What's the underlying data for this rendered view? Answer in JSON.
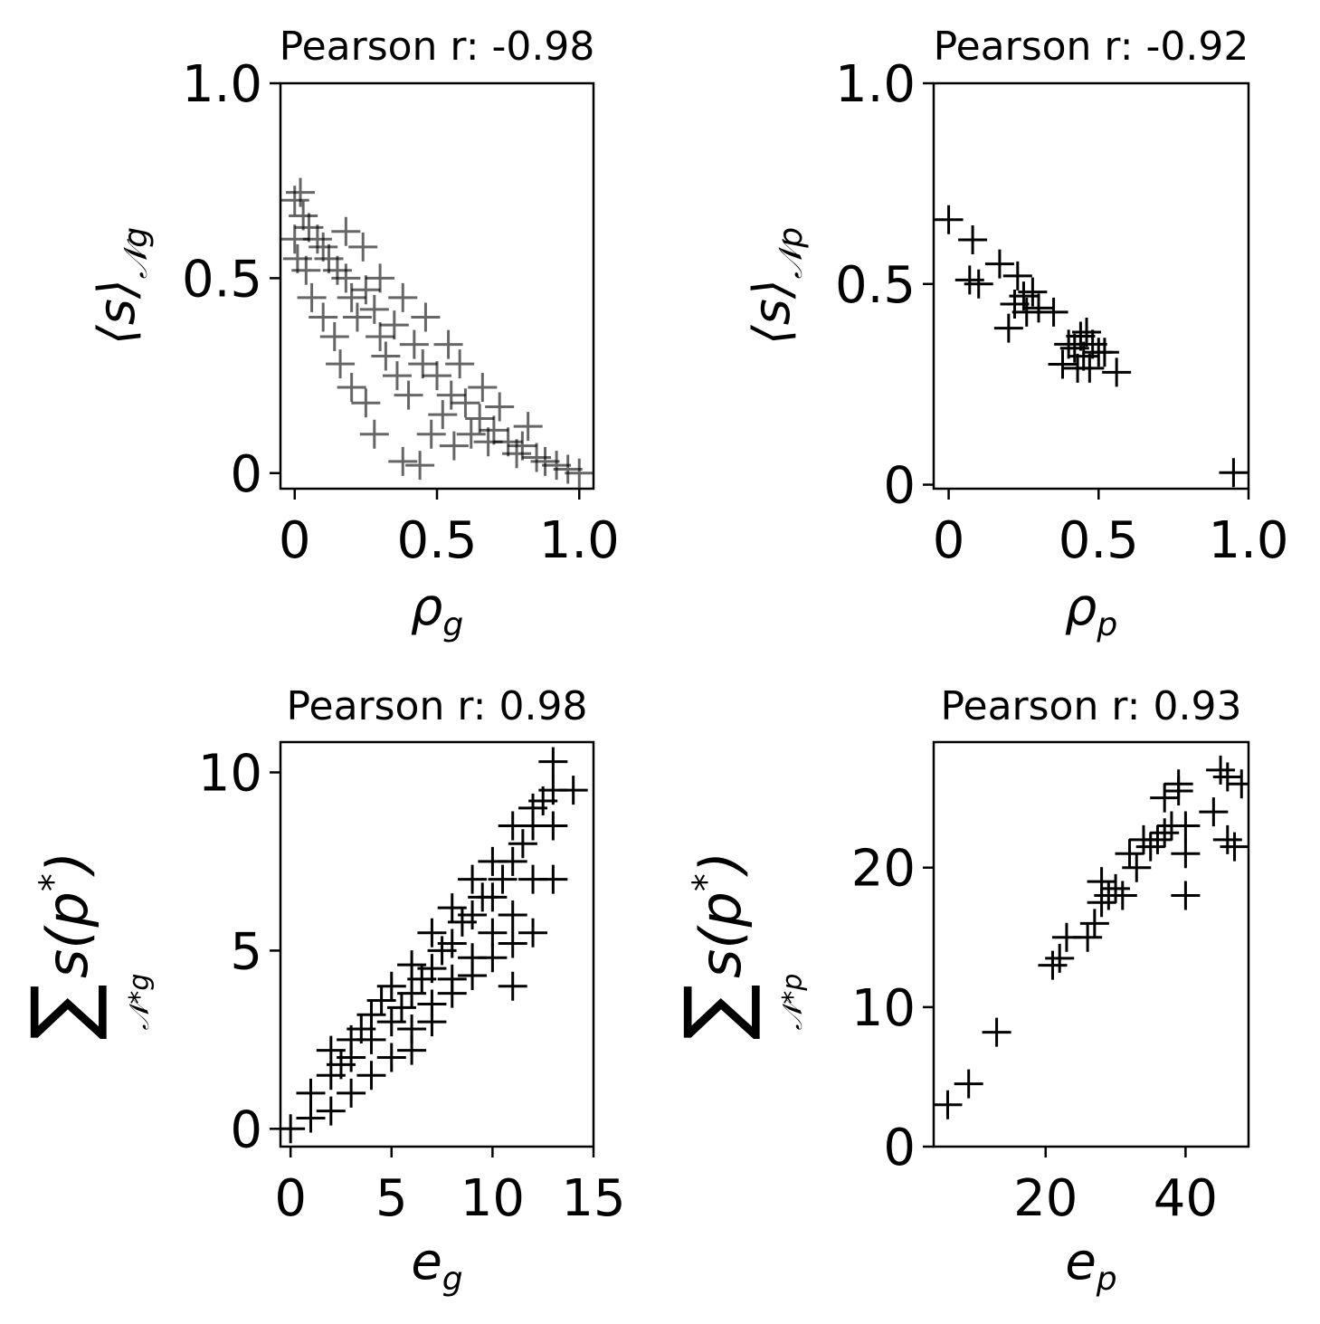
{
  "chart_data": [
    {
      "type": "scatter",
      "title": "Pearson r: -0.98",
      "xlabel": "ρ_g",
      "ylabel": "⟨s⟩_𝒩g",
      "xlim": [
        -0.05,
        1.05
      ],
      "ylim": [
        -0.04,
        1.0
      ],
      "xticks": [
        0,
        0.5,
        1.0
      ],
      "xtick_labels": [
        "0",
        "0.5",
        "1.0"
      ],
      "yticks": [
        0,
        0.5,
        1.0
      ],
      "ytick_labels": [
        "0",
        "0.5",
        "1.0"
      ],
      "marker": "+",
      "grid": false,
      "points": [
        [
          0.0,
          0.7
        ],
        [
          0.02,
          0.72
        ],
        [
          0.0,
          0.6
        ],
        [
          0.01,
          0.55
        ],
        [
          0.03,
          0.66
        ],
        [
          0.05,
          0.63
        ],
        [
          0.04,
          0.52
        ],
        [
          0.08,
          0.6
        ],
        [
          0.1,
          0.58
        ],
        [
          0.06,
          0.45
        ],
        [
          0.12,
          0.55
        ],
        [
          0.15,
          0.52
        ],
        [
          0.1,
          0.4
        ],
        [
          0.14,
          0.35
        ],
        [
          0.18,
          0.5
        ],
        [
          0.2,
          0.45
        ],
        [
          0.22,
          0.4
        ],
        [
          0.16,
          0.28
        ],
        [
          0.2,
          0.22
        ],
        [
          0.25,
          0.47
        ],
        [
          0.28,
          0.42
        ],
        [
          0.3,
          0.35
        ],
        [
          0.25,
          0.18
        ],
        [
          0.28,
          0.1
        ],
        [
          0.32,
          0.3
        ],
        [
          0.35,
          0.38
        ],
        [
          0.36,
          0.25
        ],
        [
          0.38,
          0.03
        ],
        [
          0.4,
          0.2
        ],
        [
          0.42,
          0.33
        ],
        [
          0.44,
          0.02
        ],
        [
          0.45,
          0.28
        ],
        [
          0.48,
          0.1
        ],
        [
          0.5,
          0.25
        ],
        [
          0.52,
          0.15
        ],
        [
          0.55,
          0.2
        ],
        [
          0.56,
          0.07
        ],
        [
          0.6,
          0.18
        ],
        [
          0.62,
          0.1
        ],
        [
          0.65,
          0.14
        ],
        [
          0.68,
          0.08
        ],
        [
          0.7,
          0.11
        ],
        [
          0.75,
          0.08
        ],
        [
          0.78,
          0.05
        ],
        [
          0.8,
          0.07
        ],
        [
          0.85,
          0.04
        ],
        [
          0.88,
          0.03
        ],
        [
          0.92,
          0.02
        ],
        [
          0.96,
          0.01
        ],
        [
          1.0,
          0.0
        ],
        [
          0.3,
          0.5
        ],
        [
          0.18,
          0.62
        ],
        [
          0.24,
          0.58
        ],
        [
          0.38,
          0.45
        ],
        [
          0.46,
          0.4
        ],
        [
          0.54,
          0.33
        ],
        [
          0.58,
          0.28
        ],
        [
          0.66,
          0.22
        ],
        [
          0.72,
          0.17
        ],
        [
          0.82,
          0.12
        ]
      ]
    },
    {
      "type": "scatter",
      "title": "Pearson r: -0.92",
      "xlabel": "ρ_p",
      "ylabel": "⟨s⟩_𝒩p",
      "xlim": [
        -0.05,
        1.0
      ],
      "ylim": [
        -0.01,
        1.0
      ],
      "xticks": [
        0,
        0.5,
        1.0
      ],
      "xtick_labels": [
        "0",
        "0.5",
        "1.0"
      ],
      "yticks": [
        0,
        0.5,
        1.0
      ],
      "ytick_labels": [
        "0",
        "0.5",
        "1.0"
      ],
      "marker": "+",
      "grid": false,
      "points": [
        [
          0.0,
          0.66
        ],
        [
          0.08,
          0.61
        ],
        [
          0.07,
          0.51
        ],
        [
          0.1,
          0.5
        ],
        [
          0.17,
          0.55
        ],
        [
          0.23,
          0.52
        ],
        [
          0.2,
          0.39
        ],
        [
          0.22,
          0.45
        ],
        [
          0.25,
          0.47
        ],
        [
          0.26,
          0.43
        ],
        [
          0.28,
          0.48
        ],
        [
          0.3,
          0.44
        ],
        [
          0.35,
          0.43
        ],
        [
          0.38,
          0.3
        ],
        [
          0.4,
          0.35
        ],
        [
          0.42,
          0.34
        ],
        [
          0.44,
          0.37
        ],
        [
          0.45,
          0.32
        ],
        [
          0.46,
          0.38
        ],
        [
          0.48,
          0.35
        ],
        [
          0.5,
          0.33
        ],
        [
          0.47,
          0.29
        ],
        [
          0.52,
          0.33
        ],
        [
          0.56,
          0.28
        ],
        [
          0.43,
          0.29
        ],
        [
          0.95,
          0.03
        ]
      ]
    },
    {
      "type": "scatter",
      "title": "Pearson r: 0.98",
      "xlabel": "e_g",
      "ylabel": "∑ s(p*) over 𝒩*g",
      "xlim": [
        -0.5,
        15
      ],
      "ylim": [
        -0.5,
        10.85
      ],
      "xticks": [
        0,
        5,
        10,
        15
      ],
      "xtick_labels": [
        "0",
        "5",
        "10",
        "15"
      ],
      "yticks": [
        0,
        5,
        10
      ],
      "ytick_labels": [
        "0",
        "5",
        "10"
      ],
      "marker": "+",
      "grid": false,
      "points": [
        [
          0,
          0
        ],
        [
          1,
          0.3
        ],
        [
          1,
          1
        ],
        [
          2,
          0.5
        ],
        [
          2,
          1.5
        ],
        [
          2,
          2.2
        ],
        [
          3,
          1
        ],
        [
          3,
          2
        ],
        [
          3,
          2.5
        ],
        [
          4,
          1.5
        ],
        [
          4,
          2.5
        ],
        [
          4,
          3.2
        ],
        [
          5,
          2
        ],
        [
          5,
          3
        ],
        [
          5,
          4
        ],
        [
          6,
          2.8
        ],
        [
          6,
          3.8
        ],
        [
          6,
          4.6
        ],
        [
          7,
          3.5
        ],
        [
          7,
          4.5
        ],
        [
          7,
          5.5
        ],
        [
          8,
          4.2
        ],
        [
          8,
          5.2
        ],
        [
          8,
          6.2
        ],
        [
          9,
          4.8
        ],
        [
          9,
          6
        ],
        [
          9,
          7
        ],
        [
          10,
          5.5
        ],
        [
          10,
          6.5
        ],
        [
          10,
          7.5
        ],
        [
          11,
          4
        ],
        [
          11,
          6
        ],
        [
          11,
          7.5
        ],
        [
          11,
          8.5
        ],
        [
          12,
          5.5
        ],
        [
          12,
          7
        ],
        [
          12,
          8.5
        ],
        [
          12,
          9
        ],
        [
          13,
          7
        ],
        [
          13,
          8.5
        ],
        [
          13,
          9.5
        ],
        [
          13,
          10.3
        ],
        [
          14,
          9.5
        ],
        [
          2.5,
          1.8
        ],
        [
          3.5,
          2.8
        ],
        [
          4.5,
          3.6
        ],
        [
          5.5,
          3.4
        ],
        [
          6.5,
          4.2
        ],
        [
          7.5,
          5
        ],
        [
          8.5,
          5.8
        ],
        [
          9.5,
          6.5
        ],
        [
          10.5,
          7
        ],
        [
          11.5,
          8
        ],
        [
          12.5,
          9.2
        ],
        [
          6,
          2.2
        ],
        [
          7,
          3
        ],
        [
          8,
          3.8
        ],
        [
          9,
          4.3
        ],
        [
          10,
          4.8
        ],
        [
          11,
          5.2
        ]
      ]
    },
    {
      "type": "scatter",
      "title": "Pearson r: 0.93",
      "xlabel": "e_p",
      "ylabel": "∑ s(p*) over 𝒩*p",
      "xlim": [
        4,
        49
      ],
      "ylim": [
        0,
        29
      ],
      "xticks": [
        20,
        40
      ],
      "xtick_labels": [
        "20",
        "40"
      ],
      "yticks": [
        0,
        10,
        20
      ],
      "ytick_labels": [
        "0",
        "10",
        "20"
      ],
      "marker": "+",
      "grid": false,
      "points": [
        [
          6,
          3
        ],
        [
          9,
          4.5
        ],
        [
          13,
          8.2
        ],
        [
          21,
          13
        ],
        [
          22,
          13.5
        ],
        [
          23,
          15
        ],
        [
          26,
          15
        ],
        [
          27,
          16
        ],
        [
          28,
          17.5
        ],
        [
          28,
          19
        ],
        [
          29,
          18
        ],
        [
          30,
          18.5
        ],
        [
          31,
          18
        ],
        [
          32,
          21
        ],
        [
          33,
          20
        ],
        [
          34,
          22
        ],
        [
          35,
          21.5
        ],
        [
          36,
          22
        ],
        [
          37,
          25
        ],
        [
          37,
          22.5
        ],
        [
          38,
          23
        ],
        [
          39,
          25.5
        ],
        [
          39,
          26
        ],
        [
          40,
          21
        ],
        [
          40,
          18
        ],
        [
          40,
          23
        ],
        [
          44,
          24
        ],
        [
          45,
          27
        ],
        [
          46,
          26.5
        ],
        [
          46,
          22
        ],
        [
          47,
          21.5
        ],
        [
          48,
          26
        ]
      ]
    }
  ]
}
